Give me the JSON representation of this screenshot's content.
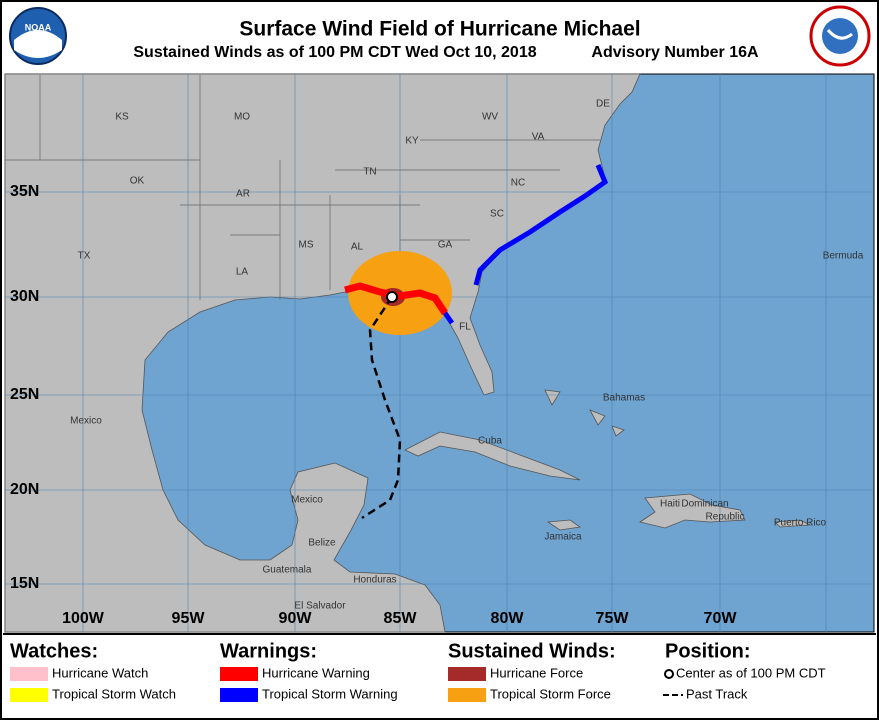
{
  "header": {
    "title": "Surface Wind Field of Hurricane Michael",
    "subtitle": "Sustained Winds as of 100 PM CDT Wed Oct 10, 2018",
    "advisory": "Advisory Number 16A"
  },
  "map": {
    "lat_labels": [
      "35N",
      "30N",
      "25N",
      "20N",
      "15N"
    ],
    "lon_labels": [
      "100W",
      "95W",
      "90W",
      "85W",
      "80W",
      "75W",
      "70W"
    ],
    "places": [
      "KS",
      "MO",
      "KY",
      "WV",
      "VA",
      "DE",
      "OK",
      "TN",
      "NC",
      "AR",
      "SC",
      "TX",
      "MS",
      "AL",
      "GA",
      "Bermuda",
      "LA",
      "FL",
      "Bahamas",
      "Mexico",
      "Cuba",
      "Mexico",
      "Haiti",
      "Dominican",
      "Republic",
      "Puerto Rico",
      "Jamaica",
      "Belize",
      "Guatemala",
      "Honduras",
      "El Salvador"
    ]
  },
  "legend": {
    "watches": {
      "title": "Watches:",
      "items": [
        "Hurricane Watch",
        "Tropical Storm Watch"
      ]
    },
    "warnings": {
      "title": "Warnings:",
      "items": [
        "Hurricane Warning",
        "Tropical Storm Warning"
      ]
    },
    "winds": {
      "title": "Sustained Winds:",
      "items": [
        "Hurricane Force",
        "Tropical Storm Force"
      ]
    },
    "position": {
      "title": "Position:",
      "items": [
        "Center as of 100 PM CDT",
        "Past Track"
      ]
    }
  }
}
